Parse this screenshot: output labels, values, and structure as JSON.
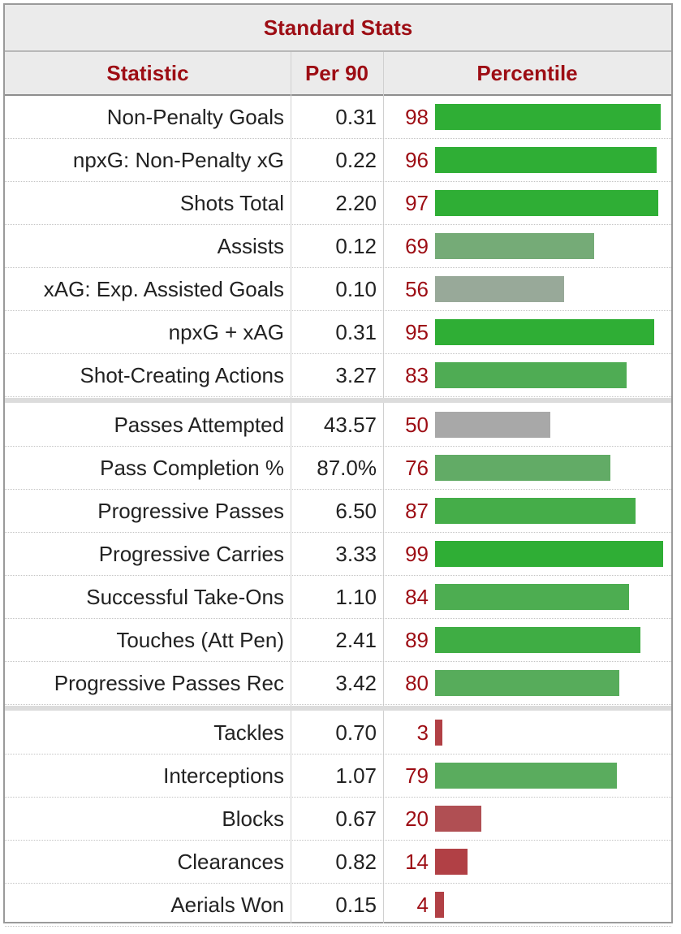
{
  "table": {
    "title": "Standard Stats",
    "headers": {
      "statistic": "Statistic",
      "per90": "Per 90",
      "percentile": "Percentile"
    }
  },
  "colors": {
    "high": "#2fae35",
    "low": "#b14045",
    "neutral": "#a8a8a8",
    "header_text": "#9d0d14"
  },
  "chart_data": {
    "type": "bar",
    "title": "Standard Stats",
    "xlabel": "",
    "ylabel": "Percentile",
    "ylim": [
      0,
      100
    ],
    "categories": [
      "Non-Penalty Goals",
      "npxG: Non-Penalty xG",
      "Shots Total",
      "Assists",
      "xAG: Exp. Assisted Goals",
      "npxG + xAG",
      "Shot-Creating Actions",
      "Passes Attempted",
      "Pass Completion %",
      "Progressive Passes",
      "Progressive Carries",
      "Successful Take-Ons",
      "Touches (Att Pen)",
      "Progressive Passes Rec",
      "Tackles",
      "Interceptions",
      "Blocks",
      "Clearances",
      "Aerials Won"
    ],
    "per90": [
      "0.31",
      "0.22",
      "2.20",
      "0.12",
      "0.10",
      "0.31",
      "3.27",
      "43.57",
      "87.0%",
      "6.50",
      "3.33",
      "1.10",
      "2.41",
      "3.42",
      "0.70",
      "1.07",
      "0.67",
      "0.82",
      "0.15"
    ],
    "values": [
      98,
      96,
      97,
      69,
      56,
      95,
      83,
      50,
      76,
      87,
      99,
      84,
      89,
      80,
      3,
      79,
      20,
      14,
      4
    ],
    "sections": [
      7,
      7,
      5
    ]
  }
}
